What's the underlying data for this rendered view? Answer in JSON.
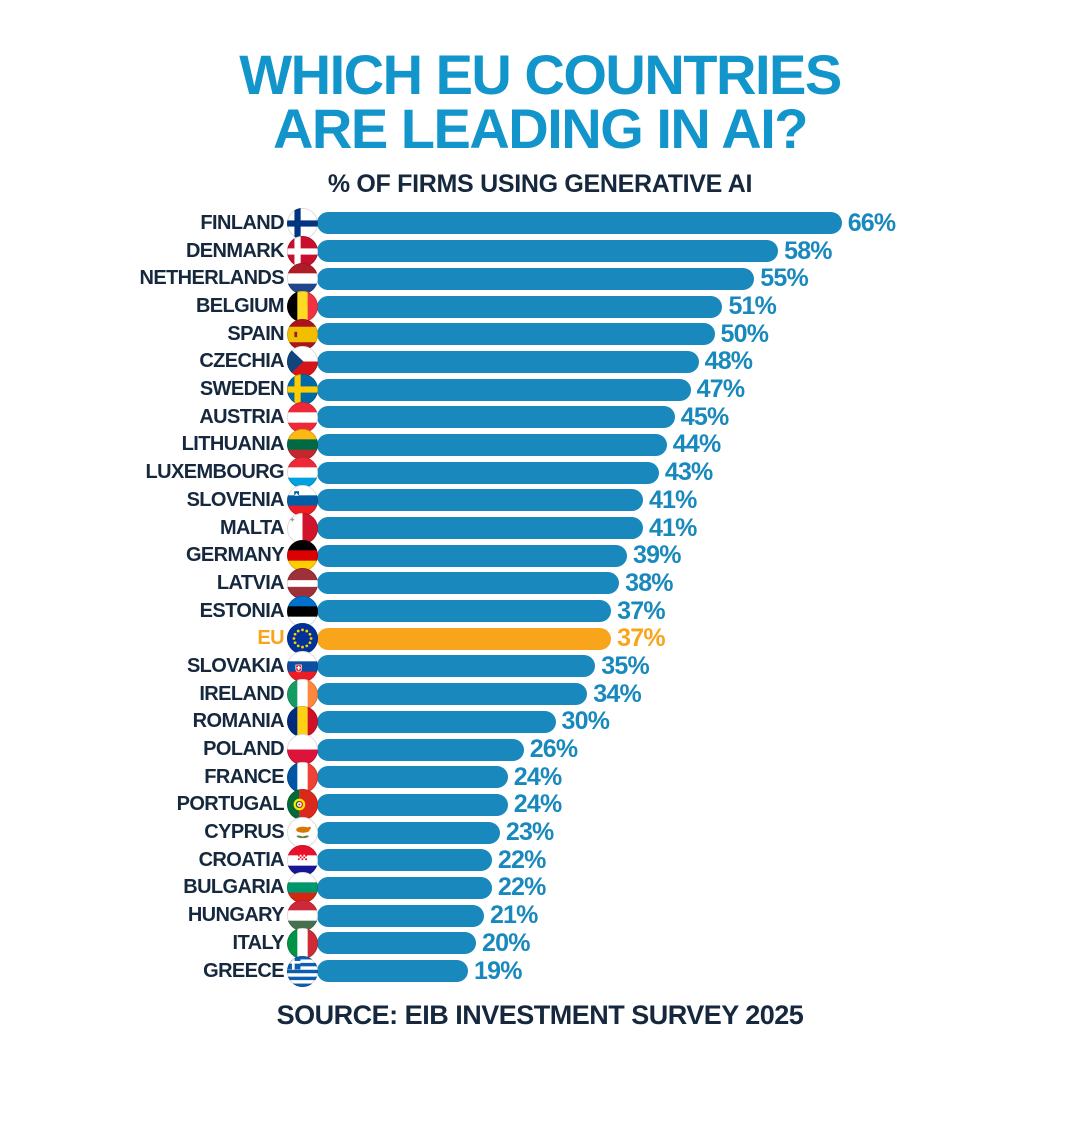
{
  "title": {
    "line1": "WHICH EU COUNTRIES",
    "line2": "ARE LEADING IN AI?"
  },
  "subtitle": "% OF FIRMS USING GENERATIVE AI",
  "source": "SOURCE: EIB INVESTMENT SURVEY 2025",
  "colors": {
    "title_cyan": "#1295CB",
    "bar_blue": "#1989BD",
    "highlight_orange": "#F9A51C",
    "navy_text": "#16283D"
  },
  "chart_data": {
    "type": "bar",
    "orientation": "horizontal",
    "title": "WHICH EU COUNTRIES ARE LEADING IN AI?",
    "subtitle": "% OF FIRMS USING GENERATIVE AI",
    "unit": "%",
    "xlim": [
      0,
      70
    ],
    "value_labels": "end-of-bar",
    "grid": false,
    "legend": "none",
    "rows": [
      {
        "label": "FINLAND",
        "value": 66,
        "flag": "finland-flag-icon",
        "highlight": false
      },
      {
        "label": "DENMARK",
        "value": 58,
        "flag": "denmark-flag-icon",
        "highlight": false
      },
      {
        "label": "NETHERLANDS",
        "value": 55,
        "flag": "netherlands-flag-icon",
        "highlight": false
      },
      {
        "label": "BELGIUM",
        "value": 51,
        "flag": "belgium-flag-icon",
        "highlight": false
      },
      {
        "label": "SPAIN",
        "value": 50,
        "flag": "spain-flag-icon",
        "highlight": false
      },
      {
        "label": "CZECHIA",
        "value": 48,
        "flag": "czechia-flag-icon",
        "highlight": false
      },
      {
        "label": "SWEDEN",
        "value": 47,
        "flag": "sweden-flag-icon",
        "highlight": false
      },
      {
        "label": "AUSTRIA",
        "value": 45,
        "flag": "austria-flag-icon",
        "highlight": false
      },
      {
        "label": "LITHUANIA",
        "value": 44,
        "flag": "lithuania-flag-icon",
        "highlight": false
      },
      {
        "label": "LUXEMBOURG",
        "value": 43,
        "flag": "luxembourg-flag-icon",
        "highlight": false
      },
      {
        "label": "SLOVENIA",
        "value": 41,
        "flag": "slovenia-flag-icon",
        "highlight": false
      },
      {
        "label": "MALTA",
        "value": 41,
        "flag": "malta-flag-icon",
        "highlight": false
      },
      {
        "label": "GERMANY",
        "value": 39,
        "flag": "germany-flag-icon",
        "highlight": false
      },
      {
        "label": "LATVIA",
        "value": 38,
        "flag": "latvia-flag-icon",
        "highlight": false
      },
      {
        "label": "ESTONIA",
        "value": 37,
        "flag": "estonia-flag-icon",
        "highlight": false
      },
      {
        "label": "EU",
        "value": 37,
        "flag": "eu-flag-icon",
        "highlight": true
      },
      {
        "label": "SLOVAKIA",
        "value": 35,
        "flag": "slovakia-flag-icon",
        "highlight": false
      },
      {
        "label": "IRELAND",
        "value": 34,
        "flag": "ireland-flag-icon",
        "highlight": false
      },
      {
        "label": "ROMANIA",
        "value": 30,
        "flag": "romania-flag-icon",
        "highlight": false
      },
      {
        "label": "POLAND",
        "value": 26,
        "flag": "poland-flag-icon",
        "highlight": false
      },
      {
        "label": "FRANCE",
        "value": 24,
        "flag": "france-flag-icon",
        "highlight": false
      },
      {
        "label": "PORTUGAL",
        "value": 24,
        "flag": "portugal-flag-icon",
        "highlight": false
      },
      {
        "label": "CYPRUS",
        "value": 23,
        "flag": "cyprus-flag-icon",
        "highlight": false
      },
      {
        "label": "CROATIA",
        "value": 22,
        "flag": "croatia-flag-icon",
        "highlight": false
      },
      {
        "label": "BULGARIA",
        "value": 22,
        "flag": "bulgaria-flag-icon",
        "highlight": false
      },
      {
        "label": "HUNGARY",
        "value": 21,
        "flag": "hungary-flag-icon",
        "highlight": false
      },
      {
        "label": "ITALY",
        "value": 20,
        "flag": "italy-flag-icon",
        "highlight": false
      },
      {
        "label": "GREECE",
        "value": 19,
        "flag": "greece-flag-icon",
        "highlight": false
      }
    ]
  }
}
